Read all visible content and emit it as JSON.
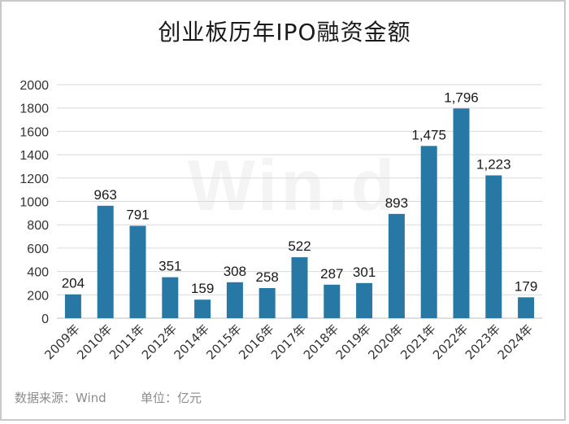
{
  "title": "创业板历年IPO融资金额",
  "source": "数据来源：Wind",
  "unit": "单位：亿元",
  "watermark": "Win.d",
  "colors": {
    "bar": "#2878a6",
    "grid": "#d9d9d9",
    "axis": "#bfbfbf"
  },
  "chart_data": {
    "type": "bar",
    "title": "创业板历年IPO融资金额",
    "categories": [
      "2009年",
      "2010年",
      "2011年",
      "2012年",
      "2014年",
      "2015年",
      "2016年",
      "2017年",
      "2018年",
      "2019年",
      "2020年",
      "2021年",
      "2022年",
      "2023年",
      "2024年"
    ],
    "values": [
      204,
      963,
      791,
      351,
      159,
      308,
      258,
      522,
      287,
      301,
      893,
      1475,
      1796,
      1223,
      179
    ],
    "data_labels": [
      "204",
      "963",
      "791",
      "351",
      "159",
      "308",
      "258",
      "522",
      "287",
      "301",
      "893",
      "1,475",
      "1,796",
      "1,223",
      "179"
    ],
    "yticks": [
      0,
      200,
      400,
      600,
      800,
      1000,
      1200,
      1400,
      1600,
      1800,
      2000
    ],
    "ylim": [
      0,
      2000
    ],
    "grid": true,
    "legend": "none"
  }
}
